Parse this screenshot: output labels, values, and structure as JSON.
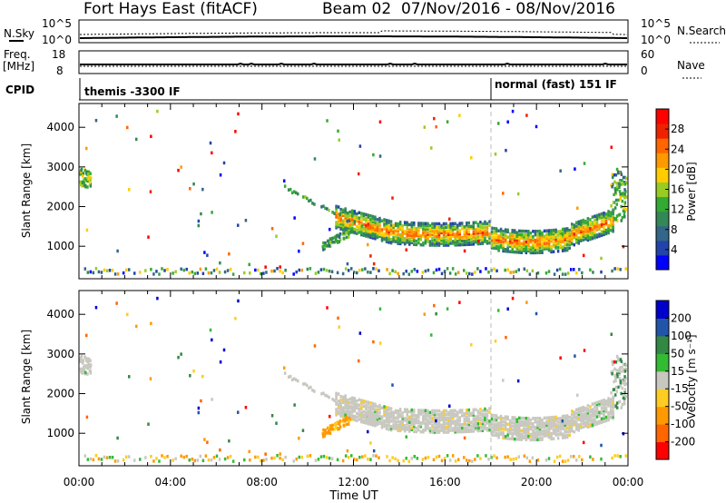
{
  "header": {
    "radar": "Fort Hays East (fitACF)",
    "beam_period": "Beam 02  07/Nov/2016 - 08/Nov/2016"
  },
  "strips": {
    "nsky_label": "N.Sky",
    "nsky_ticks": [
      "10^5",
      "10^0"
    ],
    "nsearch_ticks": [
      "10^5",
      "10^0"
    ],
    "nsearch_label": "N.Search",
    "freq_label_1": "Freq.",
    "freq_label_2": "[MHz]",
    "freq_ticks": [
      "18",
      "8"
    ],
    "nave_ticks": [
      "60",
      "0"
    ],
    "nave_label": "Nave",
    "cpid_label": "CPID",
    "cpid_segments": [
      "themis -3300 IF",
      "normal (fast) 151 IF"
    ]
  },
  "colors": {
    "power": [
      "#0000ff",
      "#2244aa",
      "#336688",
      "#338855",
      "#33aa33",
      "#99cc22",
      "#ffcc00",
      "#ff9900",
      "#ff6600",
      "#ee2200",
      "#ff0000"
    ],
    "velocity": [
      "#ff0000",
      "#ff6600",
      "#ff9900",
      "#ffcc22",
      "#c8c8c0",
      "#33bb33",
      "#338844",
      "#2255aa",
      "#0000cc"
    ]
  },
  "chart_data": [
    {
      "type": "heatmap",
      "name": "power",
      "ylabel": "Slant Range [km]",
      "xlabel": "",
      "x_ticks": [
        "00:00",
        "04:00",
        "08:00",
        "12:00",
        "16:00",
        "20:00",
        "00:00"
      ],
      "x_range_hours": [
        0,
        24
      ],
      "y_ticks": [
        "1000",
        "2000",
        "3000",
        "4000"
      ],
      "y_range_km": [
        180,
        4600
      ],
      "colorbar_label": "Power [dB]",
      "colorbar_ticks": [
        "4",
        "8",
        "12",
        "16",
        "20",
        "24",
        "28"
      ],
      "colorbar_range": [
        0,
        30
      ]
    },
    {
      "type": "heatmap",
      "name": "velocity",
      "ylabel": "Slant Range [km]",
      "xlabel": "Time UT",
      "x_ticks": [
        "00:00",
        "04:00",
        "08:00",
        "12:00",
        "16:00",
        "20:00",
        "00:00"
      ],
      "x_range_hours": [
        0,
        24
      ],
      "y_ticks": [
        "1000",
        "2000",
        "3000",
        "4000"
      ],
      "y_range_km": [
        180,
        4600
      ],
      "colorbar_label": "Velocity [m s⁻¹]",
      "colorbar_ticks": [
        "-200",
        "-100",
        "-50",
        "-15",
        "15",
        "50",
        "100",
        "200"
      ]
    }
  ]
}
